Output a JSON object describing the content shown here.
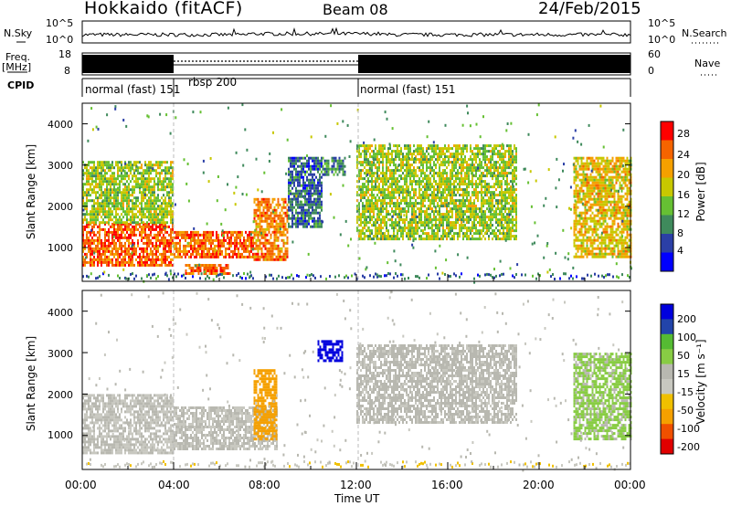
{
  "header": {
    "title": "Hokkaido (fitACF)",
    "beam": "Beam 08",
    "date": "24/Feb/2015"
  },
  "left_labels": {
    "nsky": "N.Sky",
    "freq": "Freq.",
    "mhz": "[MHz]",
    "cpid": "CPID"
  },
  "right_labels": {
    "nsearch": "N.Search",
    "nave": "Nave"
  },
  "noise_axis": {
    "top": "10^5",
    "bottom": "10^0"
  },
  "freq_axis": {
    "top": "18",
    "bottom": "8"
  },
  "nave_axis": {
    "top": "60",
    "bottom": "0"
  },
  "modes": [
    {
      "label": "normal (fast) 151",
      "start": "00:00",
      "end": "04:00"
    },
    {
      "label": "rbsp 200",
      "start": "04:00",
      "end": "12:00"
    },
    {
      "label": "normal (fast) 151",
      "start": "12:00",
      "end": "24:00"
    }
  ],
  "colors": {
    "power": [
      "#0000ff",
      "#2b3fa6",
      "#3f8a5c",
      "#66c033",
      "#c8c800",
      "#f5a000",
      "#f56400",
      "#ff0000"
    ],
    "velocity": [
      "#e00000",
      "#f05000",
      "#f5a000",
      "#f0c000",
      "#c8c8c0",
      "#b8b8b0",
      "#88cc44",
      "#55bb33",
      "#2c8a6a",
      "#2244aa",
      "#0000dd"
    ]
  },
  "chart_data": [
    {
      "type": "heatmap",
      "panel": "power",
      "xlabel": "",
      "ylabel": "Slant Range [km]",
      "ylim": [
        180,
        4500
      ],
      "yticks": [
        "1000",
        "2000",
        "3000",
        "4000"
      ],
      "colorbar_label": "Power [dB]",
      "colorbar_ticks": [
        "4",
        "8",
        "12",
        "16",
        "20",
        "24",
        "28"
      ],
      "regions": [
        {
          "t_start": 0.0,
          "t_end": 4.0,
          "r_min": 600,
          "r_max": 1600,
          "level": 28
        },
        {
          "t_start": 0.0,
          "t_end": 4.0,
          "r_min": 1600,
          "r_max": 3100,
          "level": 18
        },
        {
          "t_start": 4.0,
          "t_end": 7.5,
          "r_min": 800,
          "r_max": 1400,
          "level": 28
        },
        {
          "t_start": 4.5,
          "t_end": 6.5,
          "r_min": 400,
          "r_max": 600,
          "level": 28
        },
        {
          "t_start": 7.5,
          "t_end": 9.0,
          "r_min": 700,
          "r_max": 2200,
          "level": 26
        },
        {
          "t_start": 9.0,
          "t_end": 10.5,
          "r_min": 1500,
          "r_max": 3200,
          "level": 10
        },
        {
          "t_start": 10.5,
          "t_end": 11.5,
          "r_min": 2800,
          "r_max": 3200,
          "level": 12
        },
        {
          "t_start": 12.0,
          "t_end": 19.0,
          "r_min": 1200,
          "r_max": 3500,
          "level": 18
        },
        {
          "t_start": 21.5,
          "t_end": 24.0,
          "r_min": 800,
          "r_max": 3200,
          "level": 22
        }
      ]
    },
    {
      "type": "heatmap",
      "panel": "velocity",
      "xlabel": "Time UT",
      "ylabel": "Slant Range [km]",
      "ylim": [
        180,
        4500
      ],
      "yticks": [
        "1000",
        "2000",
        "3000",
        "4000"
      ],
      "xticks": [
        "00:00",
        "04:00",
        "08:00",
        "12:00",
        "16:00",
        "20:00",
        "00:00"
      ],
      "colorbar_label": "Velocity [m s⁻¹]",
      "colorbar_ticks": [
        "200",
        "100",
        "50",
        "15",
        "-15",
        "-50",
        "-100",
        "-200"
      ],
      "regions": [
        {
          "t_start": 0.0,
          "t_end": 4.0,
          "r_min": 600,
          "r_max": 2000,
          "level": 0
        },
        {
          "t_start": 4.0,
          "t_end": 8.5,
          "r_min": 700,
          "r_max": 1700,
          "level": 0
        },
        {
          "t_start": 7.5,
          "t_end": 8.5,
          "r_min": 900,
          "r_max": 2600,
          "level": -40
        },
        {
          "t_start": 10.3,
          "t_end": 11.4,
          "r_min": 2800,
          "r_max": 3300,
          "level": 250
        },
        {
          "t_start": 12.0,
          "t_end": 19.0,
          "r_min": 1300,
          "r_max": 3200,
          "level": 5
        },
        {
          "t_start": 21.5,
          "t_end": 24.0,
          "r_min": 900,
          "r_max": 3000,
          "level": 20
        }
      ]
    }
  ]
}
